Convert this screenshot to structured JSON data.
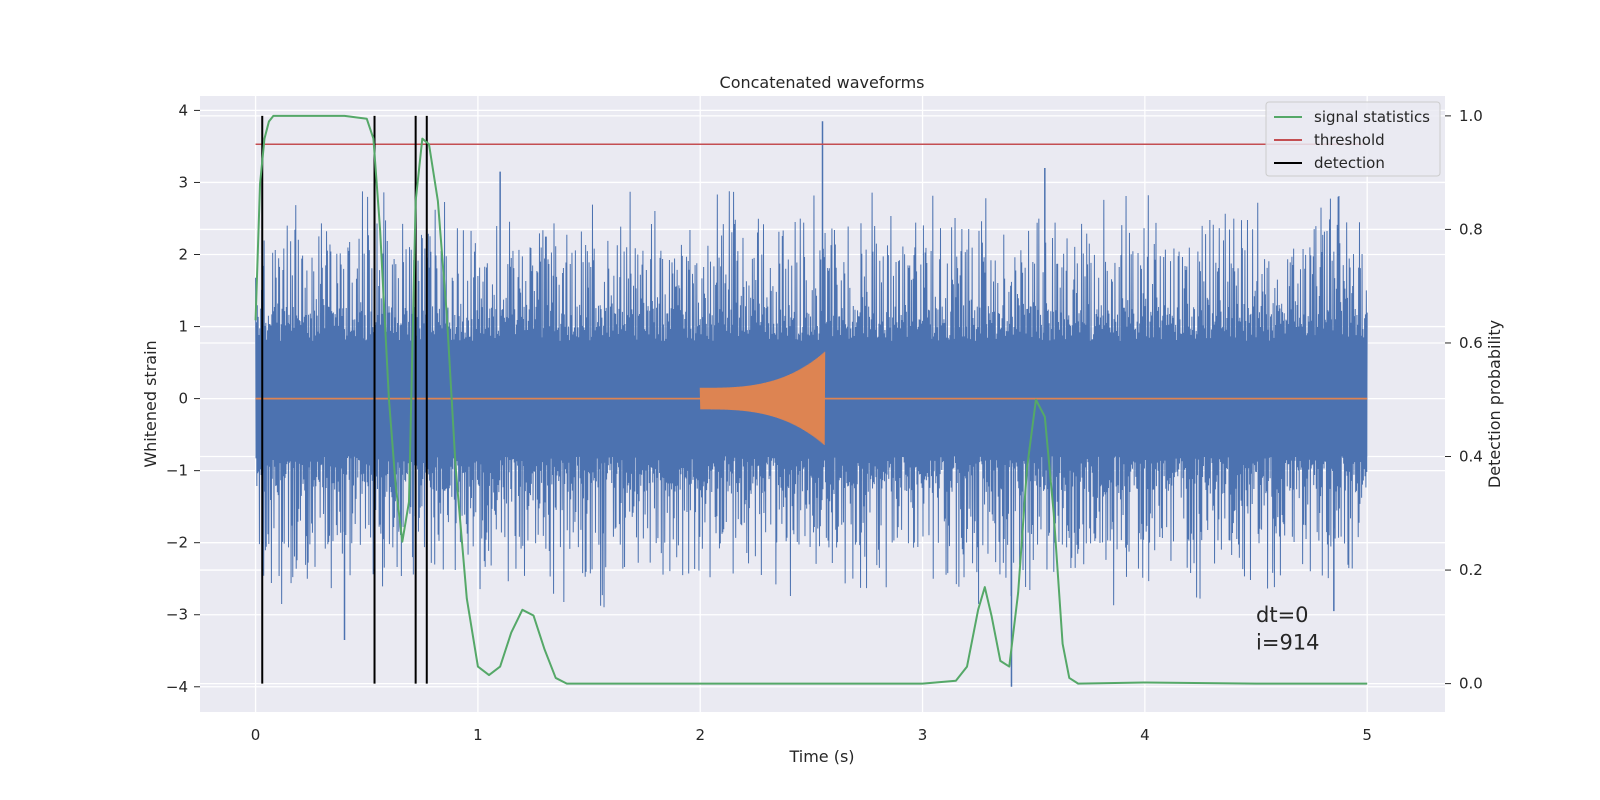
{
  "chart_data": {
    "type": "line",
    "title": "Concatenated waveforms",
    "xlabel": "Time (s)",
    "ylabel_left": "Whitened strain",
    "ylabel_right": "Detection probability",
    "xlim": [
      -0.25,
      5.35
    ],
    "ylim_left": [
      -4.35,
      4.2
    ],
    "ylim_right": [
      -0.05,
      1.035
    ],
    "x_ticks": [
      0,
      1,
      2,
      3,
      4,
      5
    ],
    "y_left_ticks": [
      -4,
      -3,
      -2,
      -1,
      0,
      1,
      2,
      3,
      4
    ],
    "y_right_ticks": [
      0.0,
      0.2,
      0.4,
      0.6,
      0.8,
      1.0
    ],
    "y_right_tick_labels": [
      "0.0",
      "0.2",
      "0.4",
      "0.6",
      "0.8",
      "1.0"
    ],
    "grid": true,
    "legend_position": "top-right",
    "legend": [
      {
        "label": "signal statistics",
        "color": "#55a868"
      },
      {
        "label": "threshold",
        "color": "#c44e52"
      },
      {
        "label": "detection",
        "color": "#000000"
      }
    ],
    "series": [
      {
        "name": "whitened strain noise",
        "axis": "left",
        "color": "#4c72b0",
        "x_range": [
          0,
          5
        ],
        "core_amplitude": 0.8,
        "notable_peaks": [
          {
            "x": 2.55,
            "y": 3.85
          },
          {
            "x": 3.4,
            "y": -4.0
          },
          {
            "x": 3.55,
            "y": 3.2
          },
          {
            "x": 1.1,
            "y": 3.15
          },
          {
            "x": 0.4,
            "y": -3.35
          },
          {
            "x": 4.85,
            "y": -2.95
          }
        ]
      },
      {
        "name": "injected waveform",
        "axis": "left",
        "color": "#dd8452",
        "x_range": [
          0,
          5
        ],
        "chirp_start": 2.0,
        "chirp_end": 2.56,
        "start_amplitude": 0.15,
        "peak_amplitude": 0.65
      },
      {
        "name": "signal statistics",
        "axis": "right",
        "color": "#55a868",
        "x": [
          0.0,
          0.02,
          0.04,
          0.06,
          0.08,
          0.1,
          0.2,
          0.3,
          0.4,
          0.5,
          0.53,
          0.56,
          0.6,
          0.63,
          0.66,
          0.69,
          0.72,
          0.75,
          0.78,
          0.82,
          0.86,
          0.9,
          0.95,
          1.0,
          1.05,
          1.1,
          1.15,
          1.2,
          1.25,
          1.3,
          1.35,
          1.4,
          1.8,
          2.5,
          3.0,
          3.15,
          3.2,
          3.25,
          3.28,
          3.31,
          3.35,
          3.39,
          3.43,
          3.47,
          3.51,
          3.55,
          3.59,
          3.63,
          3.66,
          3.7,
          4.0,
          4.5,
          5.0
        ],
        "y": [
          0.64,
          0.88,
          0.96,
          0.99,
          1.0,
          1.0,
          1.0,
          1.0,
          1.0,
          0.995,
          0.96,
          0.8,
          0.5,
          0.35,
          0.25,
          0.32,
          0.85,
          0.96,
          0.95,
          0.85,
          0.65,
          0.38,
          0.15,
          0.03,
          0.015,
          0.03,
          0.09,
          0.13,
          0.12,
          0.06,
          0.01,
          0.0,
          0.0,
          0.0,
          0.0,
          0.005,
          0.03,
          0.13,
          0.17,
          0.12,
          0.04,
          0.03,
          0.16,
          0.38,
          0.5,
          0.47,
          0.3,
          0.07,
          0.01,
          0.0,
          0.002,
          0.0,
          0.0
        ]
      },
      {
        "name": "threshold",
        "axis": "right",
        "color": "#c44e52",
        "x": [
          0.0,
          5.0
        ],
        "y": [
          0.95,
          0.95
        ]
      },
      {
        "name": "detection",
        "axis": "right",
        "color": "#000000",
        "x_positions": [
          0.03,
          0.535,
          0.72,
          0.77
        ],
        "y_range": [
          0.0,
          1.0
        ]
      }
    ],
    "annotations": [
      {
        "text": "dt=0",
        "x": 4.5,
        "y_left": -3.1
      },
      {
        "text": "i=914",
        "x": 4.5,
        "y_left": -3.48
      }
    ]
  }
}
